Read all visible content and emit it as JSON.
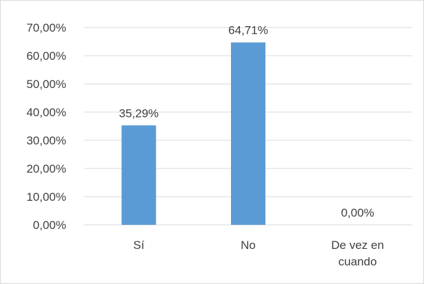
{
  "chart_data": {
    "type": "bar",
    "categories": [
      [
        "Sí"
      ],
      [
        "No"
      ],
      [
        "De vez en",
        "cuando"
      ]
    ],
    "values": [
      35.29,
      64.71,
      0.0
    ],
    "data_labels": [
      "35,29%",
      "64,71%",
      "0,00%"
    ],
    "y_ticks": [
      "0,00%",
      "10,00%",
      "20,00%",
      "30,00%",
      "40,00%",
      "50,00%",
      "60,00%",
      "70,00%"
    ],
    "ylim": [
      0,
      70
    ],
    "grid": true,
    "legend": "none",
    "bar_color": "#5b9bd5",
    "gridline_color": "#d9d9d9"
  }
}
